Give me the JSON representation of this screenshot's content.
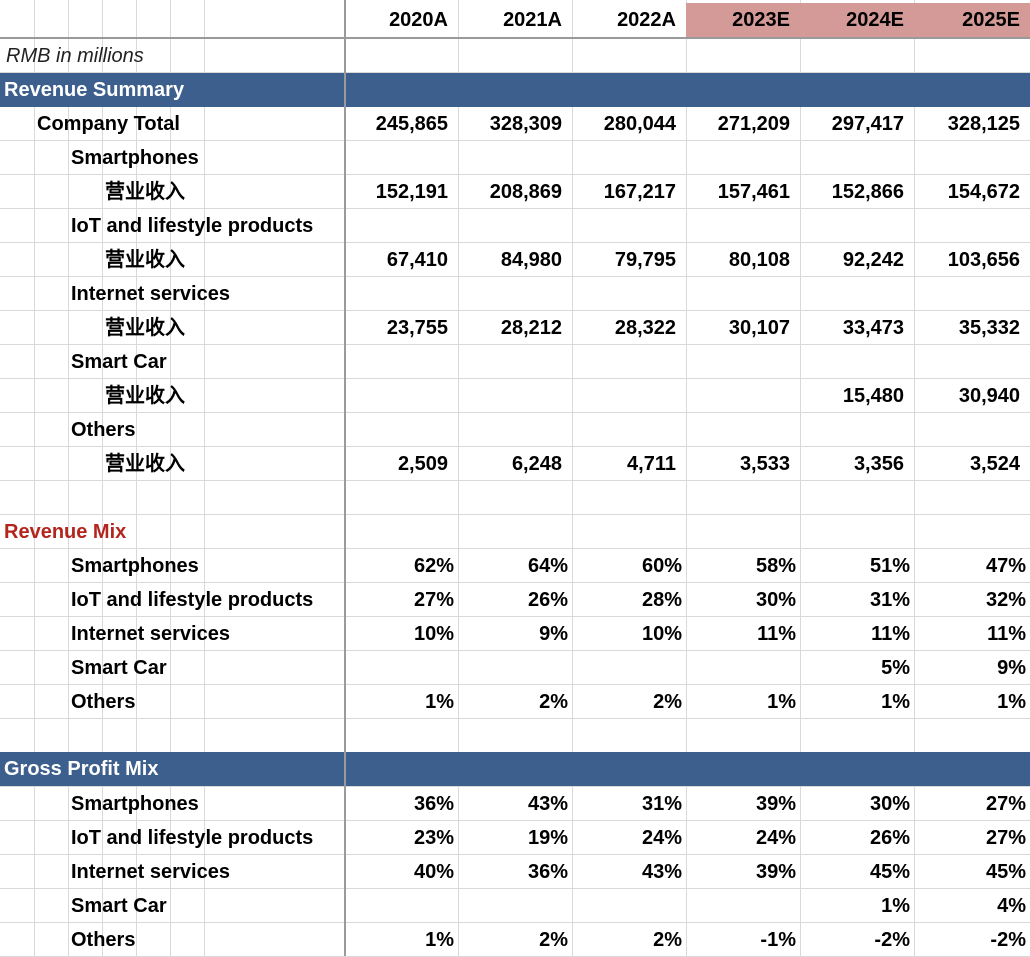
{
  "years": [
    "2020A",
    "2021A",
    "2022A",
    "2023E",
    "2024E",
    "2025E"
  ],
  "units_note": "RMB in millions",
  "colors": {
    "section_band": "#3d5f8e",
    "estimate_header": "#d49a97",
    "accent_red": "#b3261e"
  },
  "revenue_summary": {
    "title": "Revenue Summary",
    "company_total": {
      "label": "Company Total",
      "values": [
        "245,865",
        "328,309",
        "280,044",
        "271,209",
        "297,417",
        "328,125"
      ]
    },
    "segments": [
      {
        "name": "Smartphones",
        "sub_label": "营业收入",
        "values": [
          "152,191",
          "208,869",
          "167,217",
          "157,461",
          "152,866",
          "154,672"
        ]
      },
      {
        "name": "IoT and lifestyle products",
        "sub_label": "营业收入",
        "values": [
          "67,410",
          "84,980",
          "79,795",
          "80,108",
          "92,242",
          "103,656"
        ]
      },
      {
        "name": "Internet services",
        "sub_label": "营业收入",
        "values": [
          "23,755",
          "28,212",
          "28,322",
          "30,107",
          "33,473",
          "35,332"
        ]
      },
      {
        "name": "Smart Car",
        "sub_label": "营业收入",
        "values": [
          "",
          "",
          "",
          "",
          "15,480",
          "30,940"
        ]
      },
      {
        "name": "Others",
        "sub_label": "营业收入",
        "values": [
          "2,509",
          "6,248",
          "4,711",
          "3,533",
          "3,356",
          "3,524"
        ]
      }
    ]
  },
  "revenue_mix": {
    "title": "Revenue Mix",
    "rows": [
      {
        "name": "Smartphones",
        "values": [
          "62%",
          "64%",
          "60%",
          "58%",
          "51%",
          "47%"
        ]
      },
      {
        "name": "IoT and lifestyle products",
        "values": [
          "27%",
          "26%",
          "28%",
          "30%",
          "31%",
          "32%"
        ]
      },
      {
        "name": "Internet services",
        "values": [
          "10%",
          "9%",
          "10%",
          "11%",
          "11%",
          "11%"
        ]
      },
      {
        "name": "Smart Car",
        "values": [
          "",
          "",
          "",
          "",
          "5%",
          "9%"
        ]
      },
      {
        "name": "Others",
        "values": [
          "1%",
          "2%",
          "2%",
          "1%",
          "1%",
          "1%"
        ]
      }
    ]
  },
  "gross_profit_mix": {
    "title": "Gross Profit Mix",
    "rows": [
      {
        "name": "Smartphones",
        "values": [
          "36%",
          "43%",
          "31%",
          "39%",
          "30%",
          "27%"
        ]
      },
      {
        "name": "IoT and lifestyle products",
        "values": [
          "23%",
          "19%",
          "24%",
          "24%",
          "26%",
          "27%"
        ]
      },
      {
        "name": "Internet services",
        "values": [
          "40%",
          "36%",
          "43%",
          "39%",
          "45%",
          "45%"
        ]
      },
      {
        "name": "Smart Car",
        "values": [
          "",
          "",
          "",
          "",
          "1%",
          "4%"
        ]
      },
      {
        "name": "Others",
        "values": [
          "1%",
          "2%",
          "2%",
          "-1%",
          "-2%",
          "-2%"
        ]
      }
    ]
  }
}
